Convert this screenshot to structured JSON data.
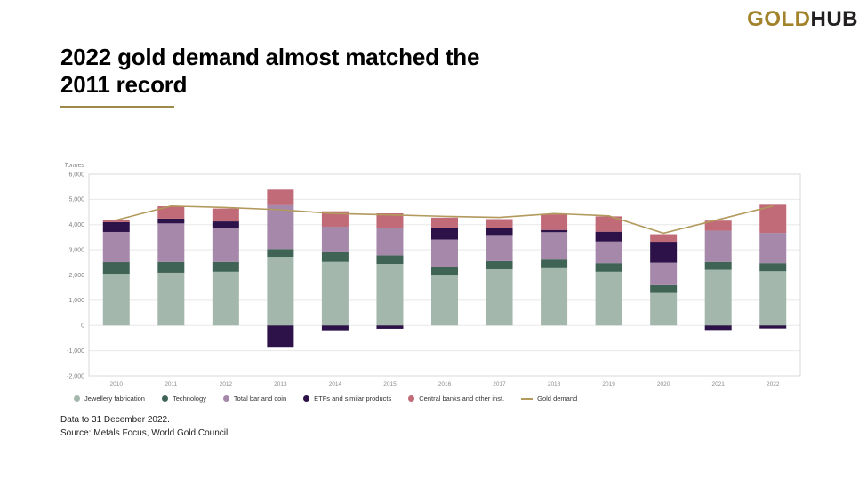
{
  "logo": {
    "part1": "GOLD",
    "part2": "HUB"
  },
  "title": {
    "line1": "2022 gold demand almost matched the",
    "line2": "2011 record"
  },
  "footer": {
    "line1": "Data to 31 December 2022.",
    "line2": "Source: Metals Focus, World Gold Council"
  },
  "chart_data": {
    "type": "bar",
    "subtype": "stacked-bars-with-line-overlay",
    "unit_label": "Tonnes",
    "grid": true,
    "legend_position": "bottom",
    "ylim": [
      -2000,
      6000
    ],
    "yticks": [
      {
        "value": 6000,
        "label": "6,000"
      },
      {
        "value": 5000,
        "label": "5,000"
      },
      {
        "value": 4000,
        "label": "4,000"
      },
      {
        "value": 3000,
        "label": "3,000"
      },
      {
        "value": 2000,
        "label": "2,000"
      },
      {
        "value": 1000,
        "label": "1,000"
      },
      {
        "value": 0,
        "label": "0"
      },
      {
        "value": -1000,
        "label": "-1,000"
      },
      {
        "value": -2000,
        "label": "-2,000"
      }
    ],
    "categories": [
      "2010",
      "2011",
      "2012",
      "2013",
      "2014",
      "2015",
      "2016",
      "2017",
      "2018",
      "2019",
      "2020",
      "2021",
      "2022"
    ],
    "series": [
      {
        "name": "Jewellery fabrication",
        "color": "#a4b7ac",
        "values": [
          2050,
          2090,
          2130,
          2720,
          2520,
          2440,
          1980,
          2230,
          2270,
          2130,
          1290,
          2210,
          2150
        ]
      },
      {
        "name": "Technology",
        "color": "#3f6355",
        "values": [
          460,
          430,
          390,
          310,
          380,
          340,
          320,
          320,
          340,
          340,
          310,
          310,
          320
        ]
      },
      {
        "name": "Total bar and coin",
        "color": "#a688aa",
        "values": [
          1200,
          1530,
          1330,
          1740,
          1020,
          1090,
          1110,
          1040,
          1090,
          860,
          890,
          1240,
          1200
        ]
      },
      {
        "name": "ETFs and similar products",
        "color": "#2c1248",
        "values": [
          390,
          190,
          280,
          -880,
          -190,
          -130,
          460,
          260,
          90,
          390,
          830,
          -180,
          -120
        ]
      },
      {
        "name": "Central banks and other inst.",
        "color": "#c26b78",
        "values": [
          80,
          490,
          510,
          620,
          610,
          580,
          410,
          370,
          620,
          610,
          300,
          400,
          1120
        ]
      }
    ],
    "line_series": {
      "name": "Gold demand",
      "color": "#b2995c",
      "values": [
        4180,
        4740,
        4680,
        4590,
        4440,
        4390,
        4330,
        4290,
        4440,
        4350,
        3660,
        4200,
        4740
      ]
    }
  }
}
